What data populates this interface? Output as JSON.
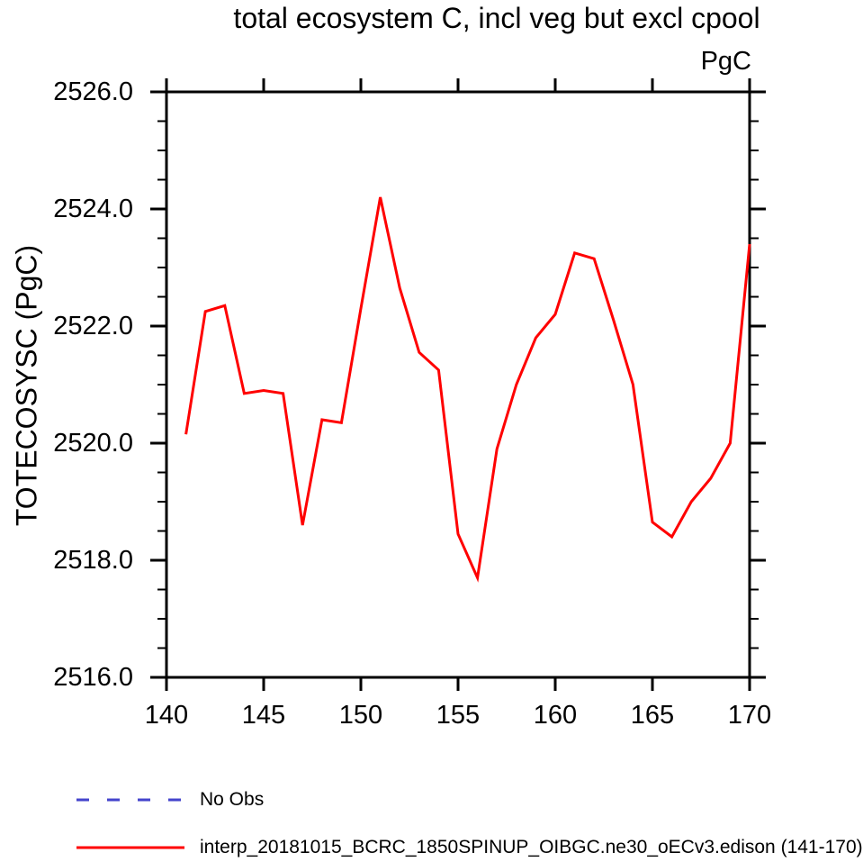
{
  "title": "total ecosystem C, incl veg but excl cpool",
  "units_label": "PgC",
  "y_axis_label": "TOTECOSYSC  (PgC)",
  "colors": {
    "series_line": "#ff0000",
    "no_obs_line": "#4444cc",
    "axis": "#000000",
    "background": "#ffffff"
  },
  "legend": {
    "items": [
      {
        "label": "No Obs",
        "color": "#4444cc",
        "style": "dashed"
      },
      {
        "label": "interp_20181015_BCRC_1850SPINUP_OIBGC.ne30_oECv3.edison (141-170)",
        "color": "#ff0000",
        "style": "solid"
      }
    ]
  },
  "chart_data": {
    "type": "line",
    "title": "total ecosystem C, incl veg but excl cpool",
    "xlabel": "",
    "ylabel": "TOTECOSYSC (PgC)",
    "units": "PgC",
    "xlim": [
      140,
      170
    ],
    "ylim": [
      2516,
      2526
    ],
    "grid": false,
    "legend_position": "below-left",
    "x_major_ticks": [
      140,
      145,
      150,
      155,
      160,
      165,
      170
    ],
    "x_tick_labels": [
      "140",
      "145",
      "150",
      "155",
      "160",
      "165",
      "170"
    ],
    "y_major_ticks": [
      2516,
      2518,
      2520,
      2522,
      2524,
      2526
    ],
    "y_tick_labels": [
      "2516.0",
      "2518.0",
      "2520.0",
      "2522.0",
      "2524.0",
      "2526.0"
    ],
    "y_minor_tick_step": 0.5,
    "x": [
      141,
      142,
      143,
      144,
      145,
      146,
      147,
      148,
      149,
      150,
      151,
      152,
      153,
      154,
      155,
      156,
      157,
      158,
      159,
      160,
      161,
      162,
      163,
      164,
      165,
      166,
      167,
      168,
      169,
      170
    ],
    "series": [
      {
        "name": "interp_20181015_BCRC_1850SPINUP_OIBGC.ne30_oECv3.edison (141-170)",
        "color": "#ff0000",
        "style": "solid",
        "values": [
          2520.15,
          2522.25,
          2522.35,
          2520.85,
          2520.9,
          2520.85,
          2518.6,
          2520.4,
          2520.35,
          2522.3,
          2524.2,
          2522.65,
          2521.55,
          2521.25,
          2518.45,
          2517.7,
          2519.9,
          2521.0,
          2521.8,
          2522.2,
          2523.25,
          2523.15,
          2522.1,
          2521.0,
          2518.65,
          2518.4,
          2519.0,
          2519.4,
          2520.0,
          2523.4
        ]
      },
      {
        "name": "No Obs",
        "color": "#4444cc",
        "style": "dashed",
        "values": []
      }
    ]
  }
}
